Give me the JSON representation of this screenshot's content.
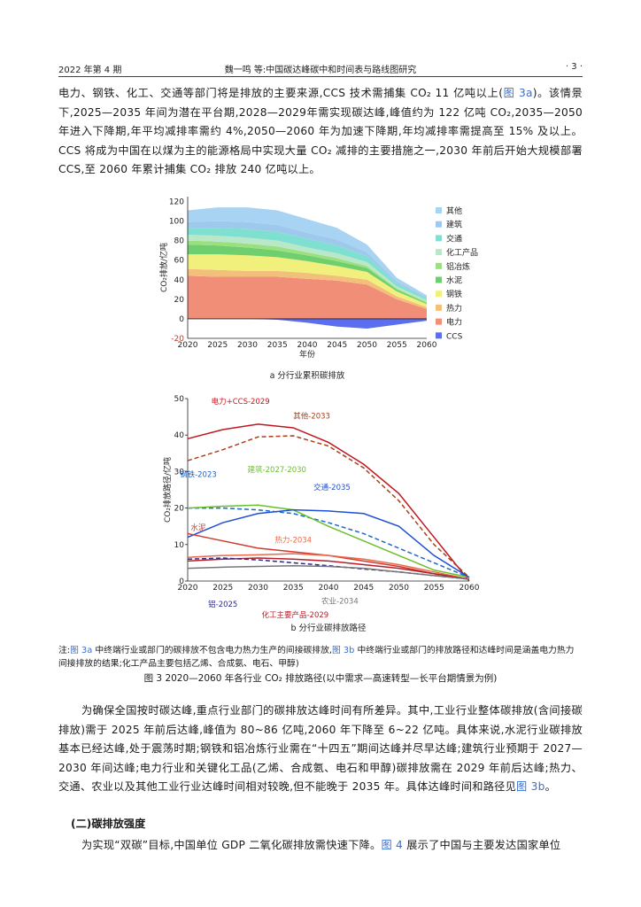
{
  "header": {
    "left": "2022 年第 4 期",
    "center": "魏一鸣 等:中国碳达峰碳中和时间表与路线图研究",
    "right": "· 3 ·"
  },
  "para1": {
    "lines": [
      "电力、钢铁、化工、交通等部门将是排放的主要来源,CCS 技术需捕集 CO₂ 11 亿吨以上(",
      "图 3a",
      ")。该情景下,2025—2035 年间为潜在平台期,2028—2029年需实现碳达峰,峰值约为 122 亿吨 CO₂,2035—2050 年进入下降期,年平均减排率需约 4%,2050—2060 年为加速下降期,年均减排率需提高至 15% 及以上。CCS 将成为中国在以煤为主的能源格局中实现大量 CO₂ 减排的主要措施之一,2030 年前后开始大规模部署 CCS,至 2060 年累计捕集 CO₂ 排放 240 亿吨以上。"
    ]
  },
  "figure_a": {
    "subcaption": "a    分行业累积碳排放"
  },
  "figure_b": {
    "subcaption": "b    分行业碳排放路径"
  },
  "note": {
    "prefix": "注:",
    "ref_a": "图 3a",
    "text1": " 中终端行业或部门的碳排放不包含电力热力生产的间接碳排放,",
    "ref_b": "图 3b",
    "text2": " 中终端行业或部门的排放路径和达峰时间是涵盖电力热力间接排放的结果;化工产品主要包括乙烯、合成氨、电石、甲醇)"
  },
  "caption": "图 3    2020—2060 年各行业 CO₂ 排放路径(以中需求—高速转型—长平台期情景为例)",
  "para2": {
    "text": "为确保全国按时碳达峰,重点行业部门的碳排放达峰时间有所差异。其中,工业行业整体碳排放(含间接碳排放)需于 2025 年前后达峰,峰值为 80~86 亿吨,2060 年下降至 6~22 亿吨。具体来说,水泥行业碳排放基本已经达峰,处于震荡时期;钢铁和铝冶炼行业需在“十四五”期间达峰并尽早达峰;建筑行业预期于 2027—2030 年间达峰;电力行业和关键化工品(乙烯、合成氨、电石和甲醇)碳排放需在 2029 年前后达峰;热力、交通、农业以及其他工业行业达峰时间相对较晚,但不能晚于 2035 年。具体达峰时间和路径见",
    "ref": "图 3b",
    "end": "。"
  },
  "section": "(二)碳排放强度",
  "para3": {
    "text": "为实现“双碳”目标,中国单位 GDP 二氧化碳排放需快速下降。",
    "ref": "图 4",
    "end": " 展示了中国与主要发达国家单位"
  },
  "chart_data": [
    {
      "type": "area",
      "title": "分行业累积碳排放",
      "xlabel": "年份",
      "ylabel": "CO₂排放/亿吨",
      "x": [
        2020,
        2025,
        2030,
        2035,
        2040,
        2045,
        2050,
        2055,
        2060
      ],
      "xticks": [
        "2020",
        "2025",
        "2030",
        "2035",
        "2040",
        "2045",
        "2050",
        "2055",
        "2060"
      ],
      "yticks": [
        "-20",
        "0",
        "20",
        "40",
        "60",
        "80",
        "100",
        "120"
      ],
      "ylim": [
        -20,
        125
      ],
      "legend": "right",
      "series": [
        {
          "name": "电力",
          "color": "#f08e78",
          "values": [
            44,
            43,
            43,
            43,
            41,
            39,
            35,
            20,
            10
          ]
        },
        {
          "name": "热力",
          "color": "#f3c07c",
          "values": [
            7,
            7,
            6,
            6,
            6,
            5,
            5,
            3,
            2
          ]
        },
        {
          "name": "钢铁",
          "color": "#f2f07c",
          "values": [
            15,
            16,
            16,
            14,
            12,
            10,
            8,
            5,
            3
          ]
        },
        {
          "name": "水泥",
          "color": "#6fcf6f",
          "values": [
            10,
            9,
            8,
            7,
            6,
            5,
            4,
            2,
            1
          ]
        },
        {
          "name": "铝冶炼",
          "color": "#9be07e",
          "values": [
            4,
            4,
            4,
            4,
            3,
            3,
            2,
            1,
            1
          ]
        },
        {
          "name": "化工产品",
          "color": "#b8e8c8",
          "values": [
            6,
            6,
            6,
            6,
            5,
            5,
            4,
            2,
            2
          ]
        },
        {
          "name": "交通",
          "color": "#7fe0d2",
          "values": [
            7,
            8,
            9,
            9,
            9,
            8,
            6,
            3,
            2
          ]
        },
        {
          "name": "建筑",
          "color": "#9ec8ec",
          "values": [
            6,
            7,
            7,
            7,
            6,
            6,
            4,
            2,
            1
          ]
        },
        {
          "name": "其他",
          "color": "#a9d3f2",
          "values": [
            12,
            14,
            15,
            15,
            14,
            12,
            8,
            4,
            2
          ]
        },
        {
          "name": "CCS",
          "color": "#5b6ef0",
          "values": [
            0,
            0,
            0,
            -1,
            -4,
            -8,
            -10,
            -6,
            -2
          ]
        }
      ]
    },
    {
      "type": "line",
      "title": "分行业碳排放路径",
      "ylabel": "CO₂排放路径/亿吨",
      "x": [
        2020,
        2025,
        2030,
        2035,
        2040,
        2045,
        2050,
        2055,
        2060
      ],
      "xticks": [
        "2020",
        "2025",
        "2030",
        "2035",
        "2040",
        "2045",
        "2050",
        "2055",
        "2060"
      ],
      "yticks": [
        "0",
        "10",
        "20",
        "30",
        "40",
        "50"
      ],
      "ylim": [
        0,
        50
      ],
      "series": [
        {
          "name": "电力+CCS-2029",
          "color": "#c0161f",
          "dash": false,
          "values": [
            39,
            41.5,
            43,
            42,
            38,
            32,
            24,
            12,
            0
          ]
        },
        {
          "name": "其他-2033",
          "color": "#a8401a",
          "dash": true,
          "values": [
            33,
            36,
            39.5,
            39.8,
            37,
            31,
            22,
            10,
            1
          ]
        },
        {
          "name": "钢铁-2023",
          "color": "#2166c4",
          "dash": true,
          "values": [
            20,
            20,
            19.5,
            18.5,
            16,
            13,
            9,
            5,
            1
          ]
        },
        {
          "name": "建筑-2027-2030",
          "color": "#6bbf2c",
          "dash": false,
          "values": [
            20,
            20.5,
            20.8,
            19.5,
            15,
            11,
            7,
            3,
            1
          ]
        },
        {
          "name": "交通-2035",
          "color": "#1f4fd8",
          "dash": false,
          "values": [
            12,
            16,
            18.5,
            19.5,
            19.2,
            18.5,
            15,
            7,
            1
          ]
        },
        {
          "name": "水泥",
          "color": "#d23a2e",
          "dash": false,
          "values": [
            13,
            11,
            9,
            8,
            7,
            5.5,
            4,
            2,
            0.5
          ]
        },
        {
          "name": "热力-2034",
          "color": "#e86a4a",
          "dash": false,
          "values": [
            6.5,
            7,
            7.2,
            7.5,
            7,
            6,
            4.5,
            2.5,
            0.5
          ]
        },
        {
          "name": "化工主要产品-2029",
          "color": "#b4202a",
          "dash": false,
          "values": [
            5.5,
            6,
            6.3,
            6,
            5.5,
            4.5,
            3.5,
            2,
            0.5
          ]
        },
        {
          "name": "铝-2025",
          "color": "#2a2a8a",
          "dash": true,
          "values": [
            6,
            6.3,
            5.8,
            5,
            4.2,
            3.3,
            2.5,
            1.5,
            0.5
          ]
        },
        {
          "name": "农业-2034",
          "color": "#777777",
          "dash": false,
          "values": [
            3.5,
            3.8,
            4,
            4.2,
            4,
            3.5,
            2.5,
            1.5,
            0.5
          ]
        }
      ]
    }
  ]
}
